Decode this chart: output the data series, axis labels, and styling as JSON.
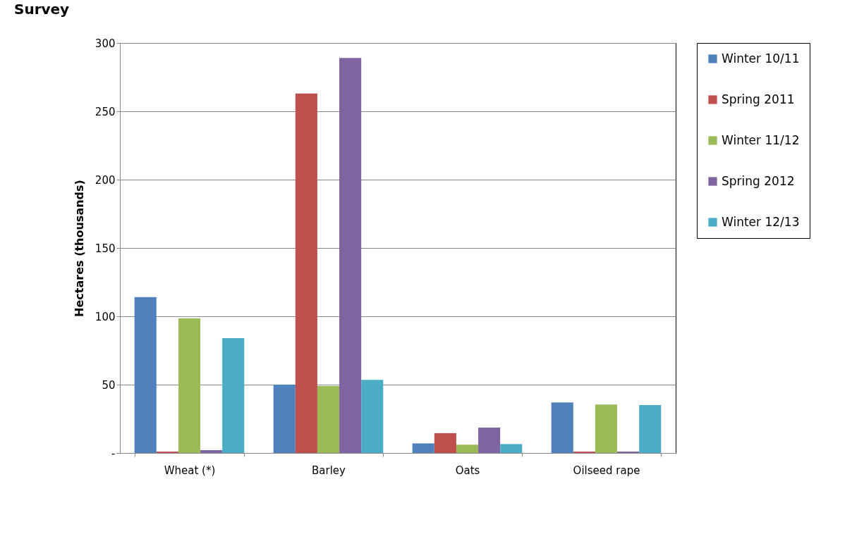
{
  "chart_data": {
    "type": "bar",
    "title": "Survey",
    "ylabel": "Hectares (thousands)",
    "categories": [
      "Wheat (*)",
      "Barley",
      "Oats",
      "Oilseed rape"
    ],
    "series": [
      {
        "name": "Winter 10/11",
        "color": "#4f81bd",
        "values": [
          114,
          50,
          7,
          37
        ]
      },
      {
        "name": "Spring 2011",
        "color": "#c0504d",
        "values": [
          1,
          263,
          14.5,
          1
        ]
      },
      {
        "name": "Winter 11/12",
        "color": "#9bbb59",
        "values": [
          98.5,
          49,
          6,
          35.5
        ]
      },
      {
        "name": "Spring 2012",
        "color": "#8064a2",
        "values": [
          2,
          289,
          18.5,
          1
        ]
      },
      {
        "name": "Winter 12/13",
        "color": "#4bacc6",
        "values": [
          84,
          53.5,
          6.5,
          35
        ]
      }
    ],
    "ylim": [
      0,
      300
    ],
    "yticks": [
      {
        "value": 0,
        "label": "-"
      },
      50,
      100,
      150,
      200,
      250,
      300
    ],
    "grid": "y",
    "legend": "right"
  }
}
